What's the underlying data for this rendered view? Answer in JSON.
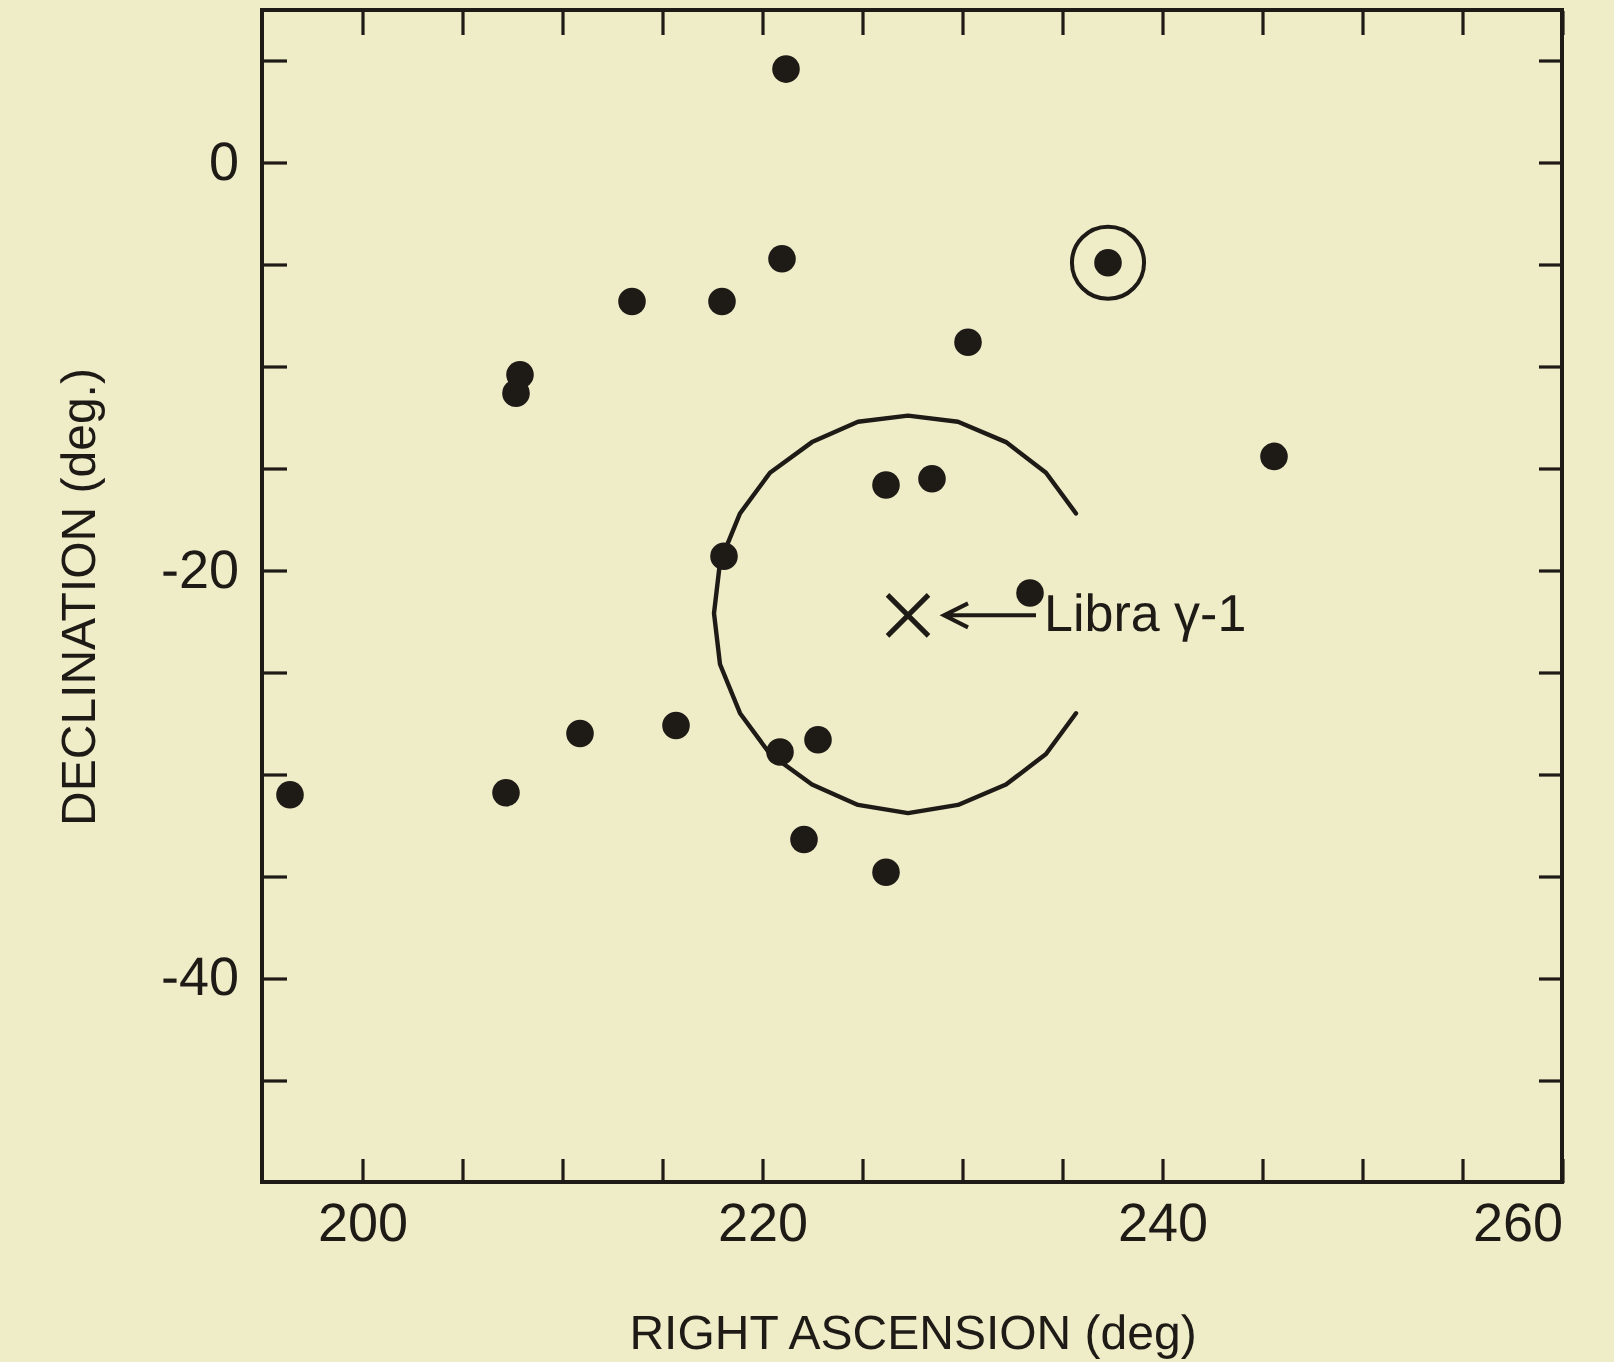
{
  "chart_data": {
    "type": "scatter",
    "xlabel": "RIGHT ASCENSION (deg)",
    "ylabel": "DECLINATION (deg.)",
    "xlim": [
      195,
      260
    ],
    "ylim": [
      -50,
      7.5
    ],
    "xticks": [
      200,
      {
        "value": 205,
        "label": null
      },
      {
        "value": 210,
        "label": null
      },
      {
        "value": 215,
        "label": null
      },
      220,
      {
        "value": 225,
        "label": null
      },
      {
        "value": 230,
        "label": null
      },
      {
        "value": 235,
        "label": null
      },
      240,
      {
        "value": 245,
        "label": null
      },
      {
        "value": 250,
        "label": null
      },
      {
        "value": 255,
        "label": null
      },
      260
    ],
    "yticks": [
      {
        "value": 5,
        "label": null
      },
      0,
      {
        "value": -5,
        "label": null
      },
      {
        "value": -10,
        "label": null
      },
      {
        "value": -15,
        "label": null
      },
      -20,
      {
        "value": -25,
        "label": null
      },
      {
        "value": -30,
        "label": null
      },
      {
        "value": -35,
        "label": null
      },
      -40,
      {
        "value": -45,
        "label": null
      }
    ],
    "annotations": [
      {
        "text": "Libra γ-1",
        "x": 227.3,
        "y": -22.2
      }
    ],
    "series": [
      {
        "marker": "circle",
        "color": "#1e1a16",
        "x": [
          221.2,
          221.0,
          213.5,
          218.0,
          237.3,
          230.3,
          207.9,
          207.7,
          245.6,
          226.2,
          228.5,
          218.1,
          233.4,
          196.4,
          207.2,
          210.9,
          215.7,
          220.9,
          222.8,
          222.1,
          226.2
        ],
        "values": [
          4.6,
          -4.7,
          -6.8,
          -6.8,
          -4.9,
          -8.8,
          -10.4,
          -11.3,
          -14.4,
          -15.8,
          -15.5,
          -19.3,
          -21.1,
          -31.0,
          -30.9,
          -28.0,
          -27.6,
          -28.9,
          -28.3,
          -33.2,
          -34.8
        ]
      },
      {
        "type": "bubble",
        "color": "#1e1a16",
        "x": [
          237.3
        ],
        "values": [
          -4.9
        ],
        "sizes": [
          1
        ]
      },
      {
        "type": "scatter",
        "marker": "cross",
        "color": "#1e1a16",
        "x": [
          227.3
        ],
        "values": [
          -22.2
        ]
      },
      {
        "type": "line",
        "color": "#1e1a16",
        "x": [
          235.7,
          234.2,
          232.2,
          229.8,
          227.3,
          224.8,
          222.5,
          220.4,
          218.9,
          217.9,
          217.6,
          217.9,
          218.9,
          220.4,
          222.5,
          224.8,
          227.3,
          229.8,
          232.2,
          234.2,
          235.7
        ],
        "values": [
          -17.2,
          -15.2,
          -13.7,
          -12.7,
          -12.4,
          -12.7,
          -13.7,
          -15.2,
          -17.2,
          -19.6,
          -22.1,
          -24.6,
          -27.0,
          -29.0,
          -30.5,
          -31.5,
          -31.9,
          -31.5,
          -30.5,
          -29.0,
          -27.0
        ]
      }
    ]
  }
}
